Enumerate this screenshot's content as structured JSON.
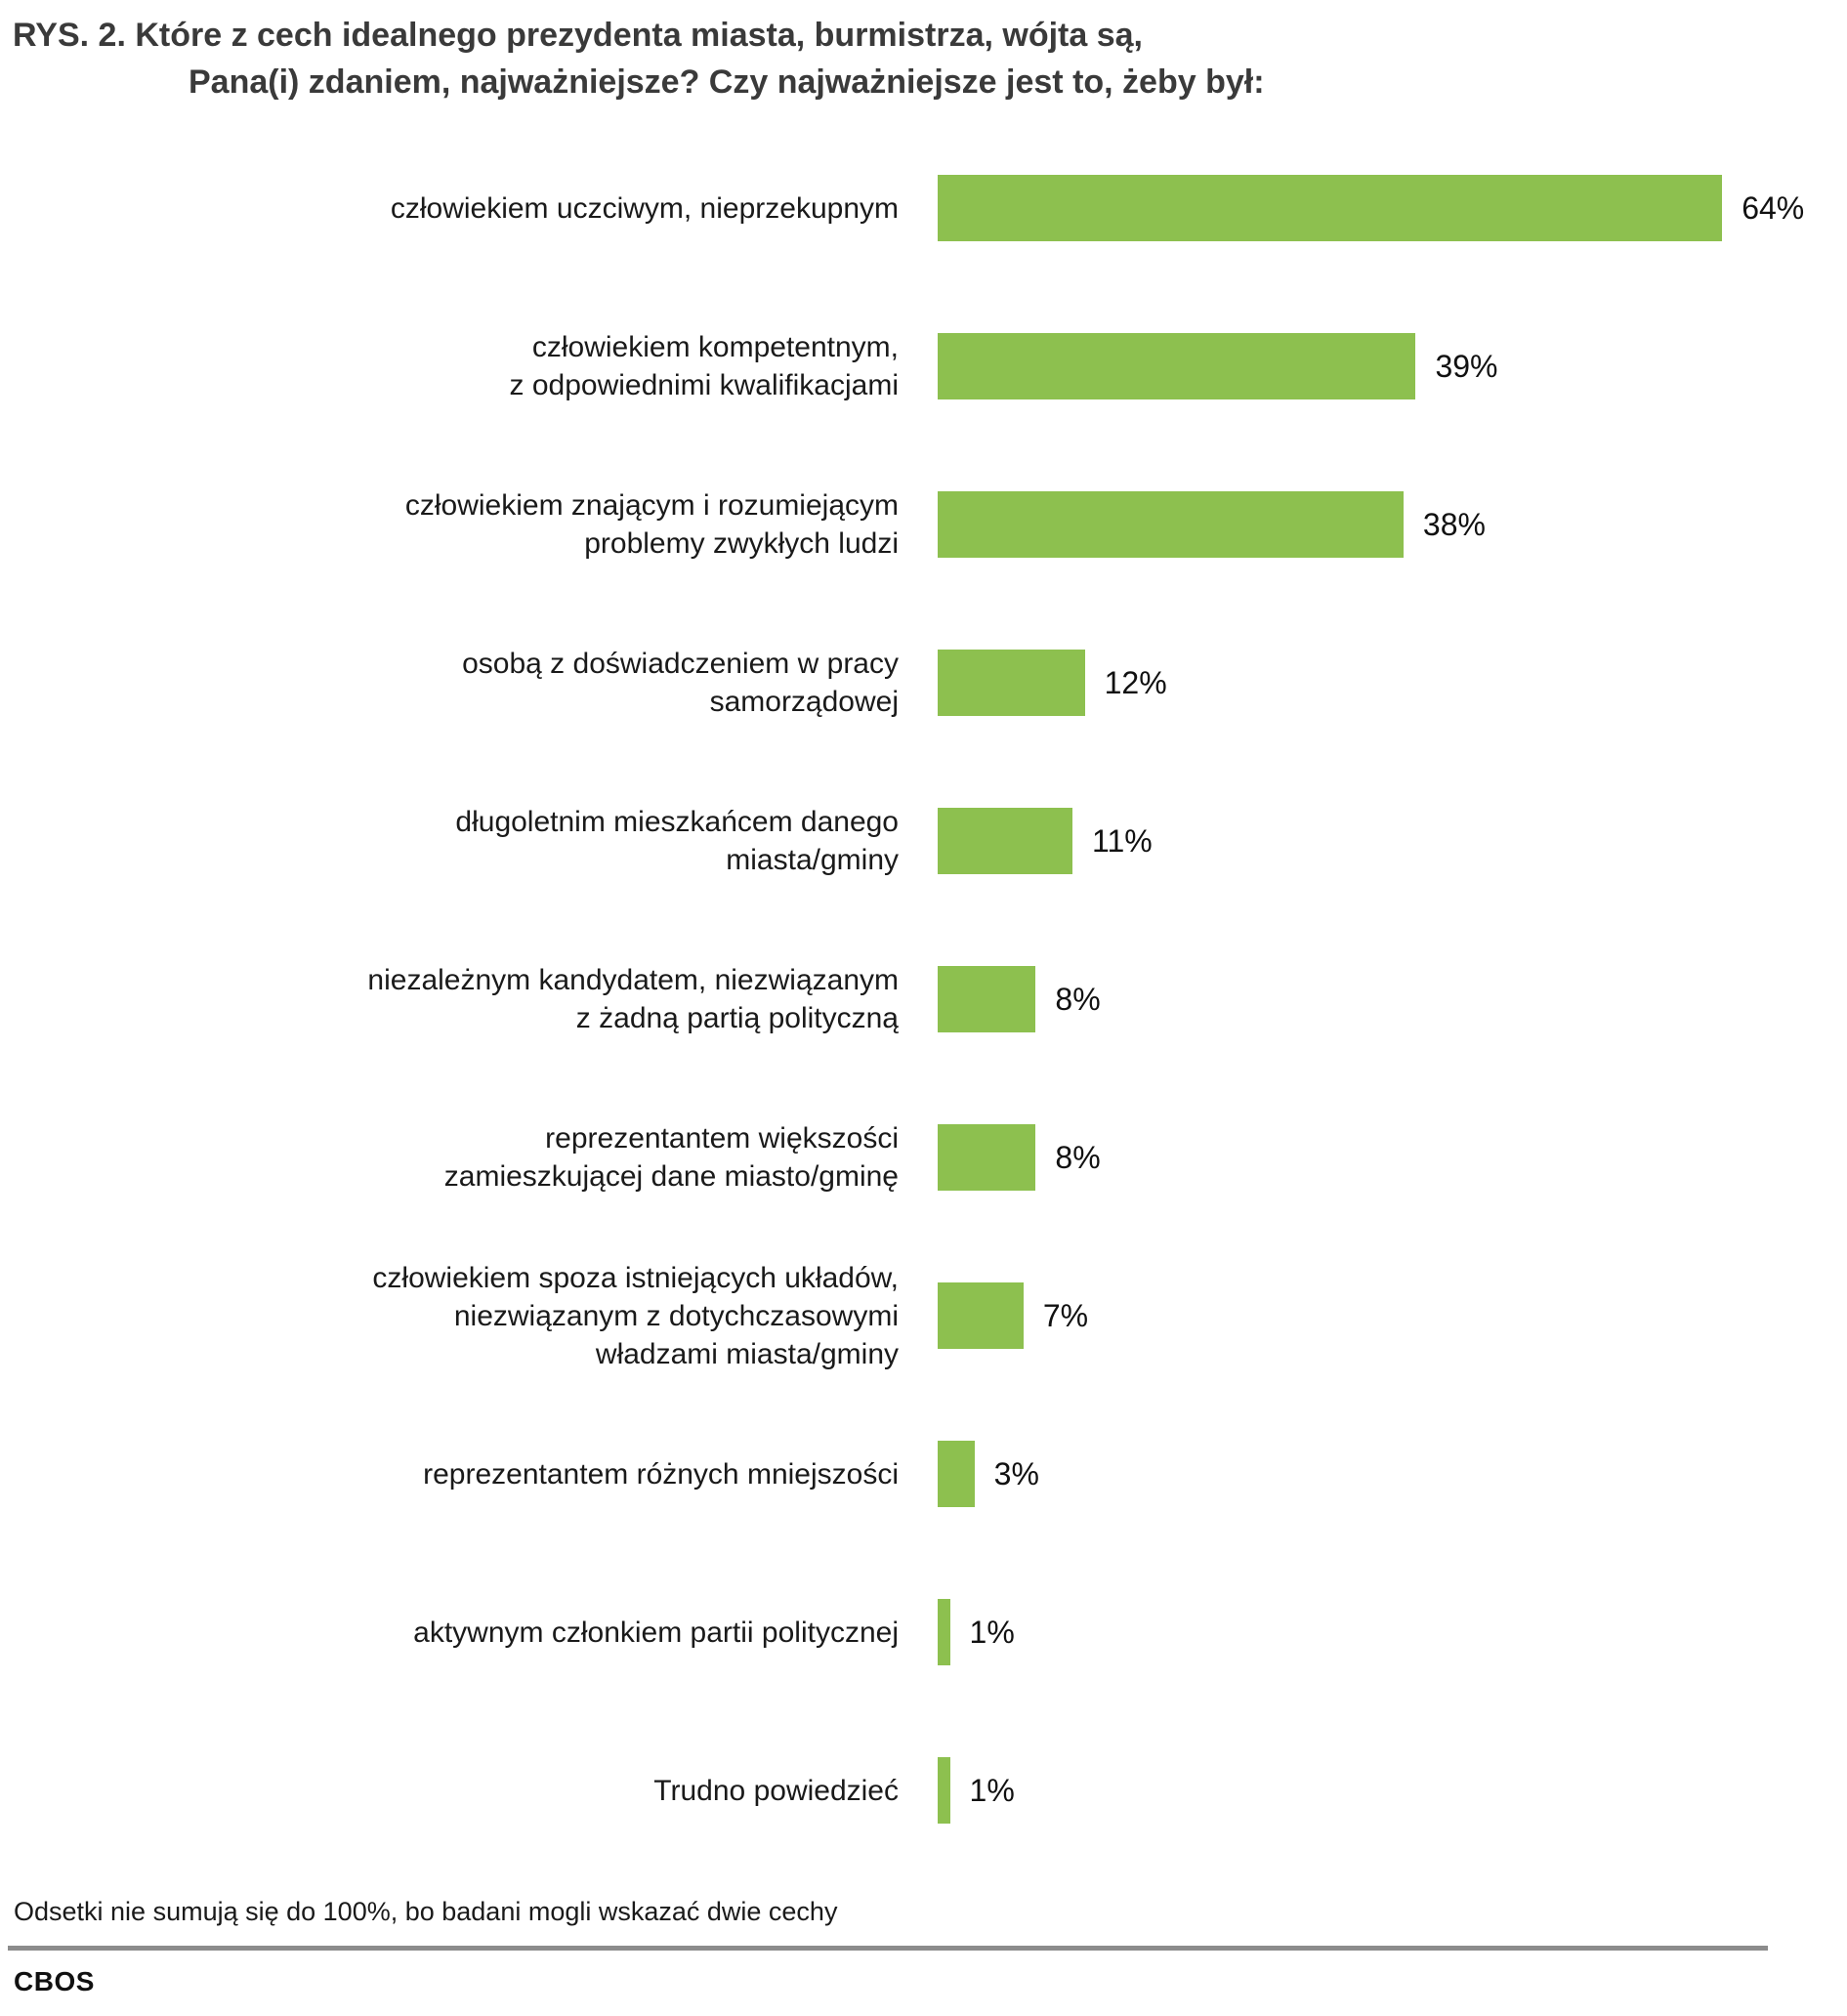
{
  "title": {
    "line1": "RYS. 2. Które z cech idealnego prezydenta miasta, burmistrza, wójta są,",
    "line2": "Pana(i) zdaniem, najważniejsze? Czy najważniejsze jest to, żeby był:"
  },
  "footnote": "Odsetki nie sumują się do 100%, bo badani mogli wskazać dwie cechy",
  "source": "CBOS",
  "colors": {
    "bar": "#8dc04f",
    "title_text": "#3a3a3a",
    "label_text": "#1a1a1a",
    "divider": "#8c8c8c"
  },
  "chart_data": {
    "type": "bar",
    "orientation": "horizontal",
    "value_unit": "%",
    "xlim": [
      0,
      68
    ],
    "grid": false,
    "legend": false,
    "title": "RYS. 2. Które z cech idealnego prezydenta miasta, burmistrza, wójta są, Pana(i) zdaniem, najważniejsze? Czy najważniejsze jest to, żeby był:",
    "footnote": "Odsetki nie sumują się do 100%, bo badani mogli wskazać dwie cechy",
    "categories": [
      "człowiekiem uczciwym, nieprzekupnym",
      "człowiekiem kompetentnym, z odpowiednimi kwalifikacjami",
      "człowiekiem znającym i rozumiejącym problemy zwykłych ludzi",
      "osobą z doświadczeniem w pracy samorządowej",
      "długoletnim mieszkańcem danego miasta/gminy",
      "niezależnym kandydatem, niezwiązanym z żadną partią polityczną",
      "reprezentantem większości zamieszkującej dane miasto/gminę",
      "człowiekiem spoza istniejących układów, niezwiązanym z dotychczasowymi władzami miasta/gminy",
      "reprezentantem różnych mniejszości",
      "aktywnym członkiem partii politycznej",
      "Trudno powiedzieć"
    ],
    "values": [
      64,
      39,
      38,
      12,
      11,
      8,
      8,
      7,
      3,
      1,
      1
    ],
    "rows": [
      {
        "label_lines": [
          "człowiekiem uczciwym, nieprzekupnym"
        ],
        "value": 64,
        "display": "64%"
      },
      {
        "label_lines": [
          "człowiekiem kompetentnym,",
          "z odpowiednimi kwalifikacjami"
        ],
        "value": 39,
        "display": "39%"
      },
      {
        "label_lines": [
          "człowiekiem znającym i rozumiejącym",
          "problemy zwykłych ludzi"
        ],
        "value": 38,
        "display": "38%"
      },
      {
        "label_lines": [
          "osobą z doświadczeniem w pracy",
          "samorządowej"
        ],
        "value": 12,
        "display": "12%"
      },
      {
        "label_lines": [
          "długoletnim mieszkańcem danego",
          "miasta/gminy"
        ],
        "value": 11,
        "display": "11%"
      },
      {
        "label_lines": [
          "niezależnym kandydatem, niezwiązanym",
          "z żadną partią polityczną"
        ],
        "value": 8,
        "display": "8%"
      },
      {
        "label_lines": [
          "reprezentantem większości",
          "zamieszkującej dane miasto/gminę"
        ],
        "value": 8,
        "display": "8%"
      },
      {
        "label_lines": [
          "człowiekiem spoza istniejących układów,",
          "niezwiązanym z dotychczasowymi",
          "władzami miasta/gminy"
        ],
        "value": 7,
        "display": "7%"
      },
      {
        "label_lines": [
          "reprezentantem różnych mniejszości"
        ],
        "value": 3,
        "display": "3%"
      },
      {
        "label_lines": [
          "aktywnym członkiem partii politycznej"
        ],
        "value": 1,
        "display": "1%"
      },
      {
        "label_lines": [
          "Trudno powiedzieć"
        ],
        "value": 1,
        "display": "1%"
      }
    ]
  }
}
